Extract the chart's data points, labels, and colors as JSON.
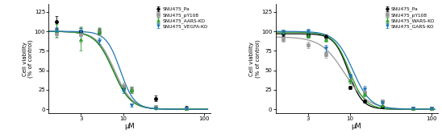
{
  "left": {
    "series": [
      {
        "label": "SNU475_Pa",
        "color": "#000000",
        "marker": "o",
        "x_data": [
          1.5,
          3.0,
          5.0,
          10.0,
          12.5,
          25.0,
          60.0
        ],
        "y_data": [
          112,
          100,
          100,
          28,
          25,
          14,
          2
        ],
        "yerr": [
          8,
          4,
          3,
          3,
          4,
          4,
          1
        ],
        "ec50": 7.5,
        "hill": 4.0,
        "top": 100,
        "bottom": 0
      },
      {
        "label": "SNU475_pY108",
        "color": "#999999",
        "marker": "s",
        "x_data": [
          1.5,
          3.0,
          5.0,
          10.0,
          12.5,
          25.0,
          60.0
        ],
        "y_data": [
          97,
          96,
          100,
          30,
          25,
          3,
          1
        ],
        "yerr": [
          5,
          10,
          5,
          4,
          4,
          2,
          1
        ],
        "ec50": 7.8,
        "hill": 4.0,
        "top": 100,
        "bottom": 0
      },
      {
        "label": "SNU475_AARS-KO",
        "color": "#2ca02c",
        "marker": "^",
        "x_data": [
          1.5,
          3.0,
          5.0,
          10.0,
          12.5,
          25.0,
          60.0
        ],
        "y_data": [
          101,
          90,
          100,
          27,
          25,
          2,
          1
        ],
        "yerr": [
          8,
          15,
          4,
          4,
          3,
          1,
          1
        ],
        "ec50": 7.5,
        "hill": 4.0,
        "top": 100,
        "bottom": 0
      },
      {
        "label": "SNU475_VEGFA-KO",
        "color": "#1f77b4",
        "marker": "v",
        "x_data": [
          1.5,
          3.0,
          5.0,
          10.0,
          12.5,
          25.0,
          60.0
        ],
        "y_data": [
          101,
          100,
          88,
          24,
          5,
          1,
          1
        ],
        "yerr": [
          4,
          4,
          4,
          3,
          2,
          1,
          1
        ],
        "ec50": 9.2,
        "hill": 5.0,
        "top": 100,
        "bottom": 0
      }
    ],
    "ylabel": "Cell viability\n(% of control)",
    "xlabel": "μM",
    "xlim": [
      1.2,
      120
    ],
    "ylim": [
      -5,
      135
    ],
    "yticks": [
      0,
      25,
      50,
      75,
      100,
      125
    ],
    "xticks": [
      3,
      10,
      100
    ]
  },
  "right": {
    "series": [
      {
        "label": "SNU475_Pa",
        "color": "#000000",
        "marker": "o",
        "x_data": [
          1.5,
          3.0,
          5.0,
          10.0,
          15.0,
          25.0,
          60.0,
          100.0
        ],
        "y_data": [
          97,
          95,
          93,
          28,
          10,
          3,
          1,
          1
        ],
        "yerr": [
          3,
          3,
          3,
          2,
          2,
          1,
          1,
          1
        ],
        "ec50": 9.5,
        "hill": 5.0,
        "top": 97,
        "bottom": 0
      },
      {
        "label": "SNU475_pY108",
        "color": "#999999",
        "marker": "s",
        "x_data": [
          1.5,
          3.0,
          5.0,
          10.0,
          15.0,
          25.0,
          60.0,
          100.0
        ],
        "y_data": [
          90,
          83,
          70,
          37,
          22,
          10,
          1,
          1
        ],
        "yerr": [
          3,
          4,
          4,
          4,
          4,
          3,
          1,
          1
        ],
        "ec50": 8.5,
        "hill": 3.0,
        "top": 93,
        "bottom": 0
      },
      {
        "label": "SNU475_WARS-KO",
        "color": "#2ca02c",
        "marker": "^",
        "x_data": [
          1.5,
          3.0,
          5.0,
          10.0,
          15.0,
          25.0,
          60.0,
          100.0
        ],
        "y_data": [
          99,
          95,
          90,
          37,
          20,
          5,
          1,
          1
        ],
        "yerr": [
          3,
          3,
          3,
          4,
          3,
          2,
          1,
          1
        ],
        "ec50": 9.8,
        "hill": 4.5,
        "top": 99,
        "bottom": 0
      },
      {
        "label": "SNU475_GARS-KO",
        "color": "#1f77b4",
        "marker": "v",
        "x_data": [
          1.5,
          3.0,
          5.0,
          10.0,
          15.0,
          25.0,
          60.0,
          100.0
        ],
        "y_data": [
          99,
          100,
          78,
          42,
          26,
          8,
          1,
          1
        ],
        "yerr": [
          3,
          3,
          5,
          4,
          4,
          3,
          1,
          1
        ],
        "ec50": 10.8,
        "hill": 4.0,
        "top": 100,
        "bottom": 0
      }
    ],
    "ylabel": "Cell viability\n(% of control)",
    "xlabel": "μM",
    "xlim": [
      1.2,
      120
    ],
    "ylim": [
      -5,
      135
    ],
    "yticks": [
      0,
      25,
      50,
      75,
      100,
      125
    ],
    "xticks": [
      3,
      10,
      100
    ]
  }
}
